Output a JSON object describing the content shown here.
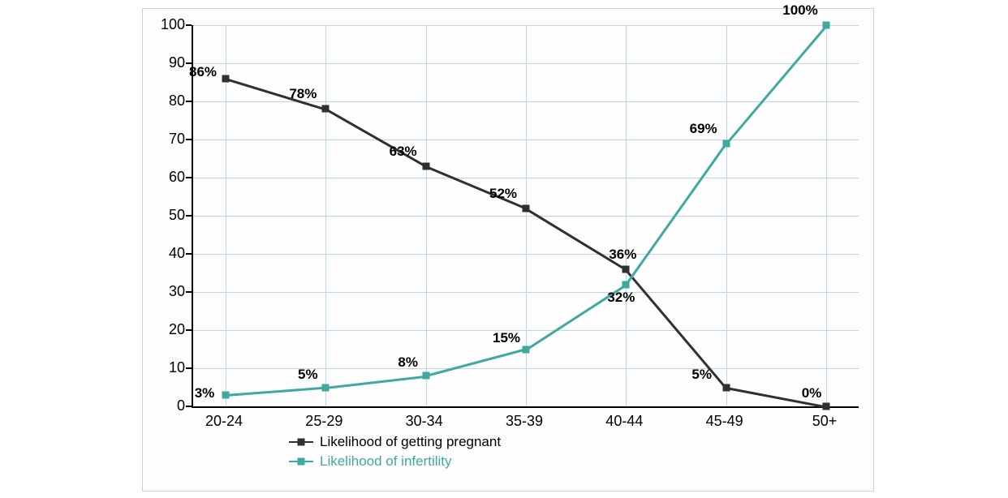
{
  "chart": {
    "type": "line",
    "background_color": "#fdfdfd",
    "grid_color": "#bcd6ea",
    "axis_color": "#000000",
    "font_family": "Arial",
    "tick_fontsize": 18,
    "datalabel_fontsize": 17,
    "datalabel_fontweight": "bold",
    "y": {
      "lim": [
        0,
        100
      ],
      "ticks": [
        0,
        10,
        20,
        30,
        40,
        50,
        60,
        70,
        80,
        90,
        100
      ]
    },
    "x": {
      "categories": [
        "20-24",
        "25-29",
        "30-34",
        "35-39",
        "40-44",
        "45-49",
        "50+"
      ]
    },
    "series": [
      {
        "id": "pregnant",
        "label": "Likelihood of getting pregnant",
        "color": "#303030",
        "text_color": "#000000",
        "line_width": 2.5,
        "marker_shape": "square",
        "marker_size": 9,
        "values": [
          86,
          78,
          63,
          52,
          36,
          5,
          0
        ],
        "point_labels": [
          "86%",
          "78%",
          "63%",
          "52%",
          "36%",
          "5%",
          "0%"
        ],
        "label_dx": [
          -28,
          -28,
          -28,
          -28,
          -4,
          -30,
          -18
        ],
        "label_dy": [
          8,
          18,
          18,
          18,
          18,
          16,
          16
        ]
      },
      {
        "id": "infertility",
        "label": "Likelihood of infertility",
        "color": "#3fa9a0",
        "text_color": "#000000",
        "line_width": 2.5,
        "marker_shape": "square",
        "marker_size": 9,
        "values": [
          3,
          5,
          8,
          15,
          32,
          69,
          100
        ],
        "point_labels": [
          "3%",
          "5%",
          "8%",
          "15%",
          "32%",
          "69%",
          "100%"
        ],
        "label_dx": [
          -26,
          -22,
          -22,
          -24,
          -6,
          -28,
          -32
        ],
        "label_dy": [
          2,
          16,
          16,
          14,
          -16,
          18,
          18
        ]
      }
    ],
    "legend": {
      "items": [
        {
          "series": "pregnant"
        },
        {
          "series": "infertility"
        }
      ]
    }
  }
}
